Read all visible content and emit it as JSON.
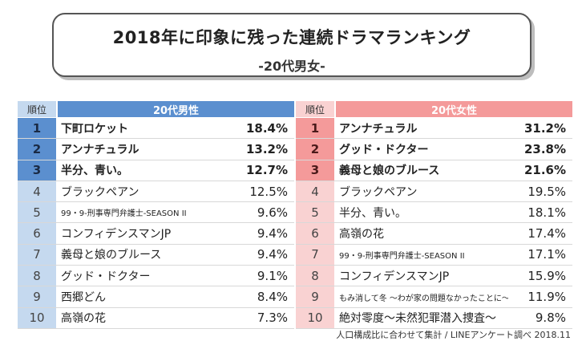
{
  "title": "2018年に印象に残った連続ドラマランキング",
  "subtitle": "-20代男女-",
  "rank_header": "順位",
  "footnote": "人口構成比に合わせて集計 / LINEアンケート調べ 2018.11",
  "colors": {
    "male_accent": "#5b8fcf",
    "male_light": "#c5d9ef",
    "female_accent": "#f49a9a",
    "female_light": "#f9d2d2"
  },
  "chart_data": [
    {
      "type": "table",
      "group": "20代男性",
      "columns": [
        "順位",
        "20代男性",
        ""
      ],
      "rows": [
        {
          "rank": "1",
          "title": "下町ロケット",
          "value": "18.4%"
        },
        {
          "rank": "2",
          "title": "アンナチュラル",
          "value": "13.2%"
        },
        {
          "rank": "3",
          "title": "半分、青い。",
          "value": "12.7%"
        },
        {
          "rank": "4",
          "title": "ブラックペアン",
          "value": "12.5%"
        },
        {
          "rank": "5",
          "title": "99・9-刑事専門弁護士-SEASON II",
          "value": "9.6%"
        },
        {
          "rank": "6",
          "title": "コンフィデンスマンJP",
          "value": "9.4%"
        },
        {
          "rank": "7",
          "title": "義母と娘のブルース",
          "value": "9.4%"
        },
        {
          "rank": "8",
          "title": "グッド・ドクター",
          "value": "9.1%"
        },
        {
          "rank": "9",
          "title": "西郷どん",
          "value": "8.4%"
        },
        {
          "rank": "10",
          "title": "高嶺の花",
          "value": "7.3%"
        }
      ]
    },
    {
      "type": "table",
      "group": "20代女性",
      "columns": [
        "順位",
        "20代女性",
        ""
      ],
      "rows": [
        {
          "rank": "1",
          "title": "アンナチュラル",
          "value": "31.2%"
        },
        {
          "rank": "2",
          "title": "グッド・ドクター",
          "value": "23.8%"
        },
        {
          "rank": "3",
          "title": "義母と娘のブルース",
          "value": "21.6%"
        },
        {
          "rank": "4",
          "title": "ブラックペアン",
          "value": "19.5%"
        },
        {
          "rank": "5",
          "title": "半分、青い。",
          "value": "18.1%"
        },
        {
          "rank": "6",
          "title": "高嶺の花",
          "value": "17.4%"
        },
        {
          "rank": "7",
          "title": "99・9-刑事専門弁護士-SEASON II",
          "value": "17.1%"
        },
        {
          "rank": "8",
          "title": "コンフィデンスマンJP",
          "value": "15.9%"
        },
        {
          "rank": "9",
          "title": "もみ消して冬 ～わが家の問題なかったことに～",
          "value": "11.9%"
        },
        {
          "rank": "10",
          "title": "絶対零度～未然犯罪潜入捜査～",
          "value": "9.8%"
        }
      ]
    }
  ]
}
